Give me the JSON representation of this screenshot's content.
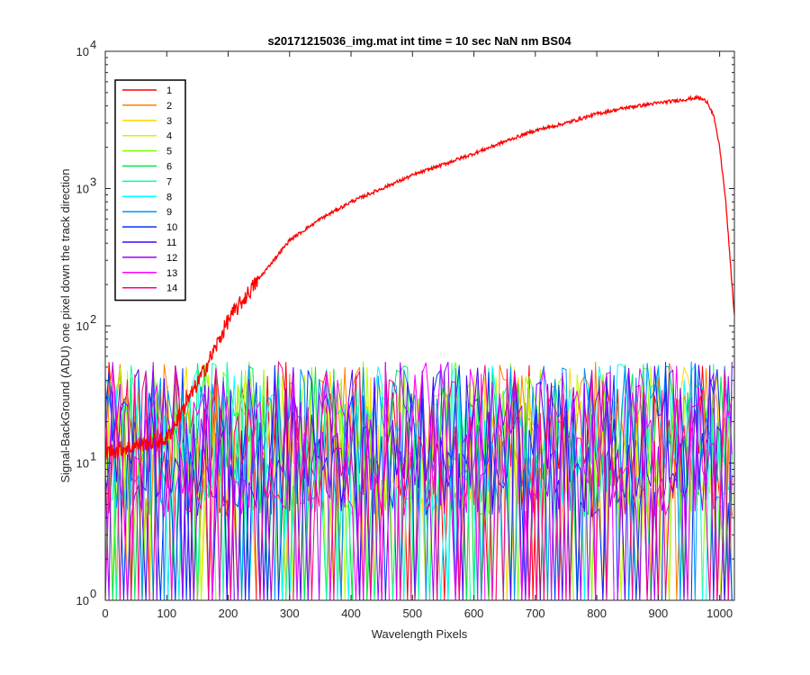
{
  "chart_data": {
    "type": "line",
    "title": "s20171215036_img.mat int time = 10 sec  NaN nm BS04",
    "xlabel": "Wavelength Pixels",
    "ylabel": "Signal-BackGround (ADU) one pixel down the track direction",
    "xlim": [
      0,
      1024
    ],
    "ylim": [
      1,
      10000
    ],
    "yscale": "log",
    "x_ticks": [
      "0",
      "100",
      "200",
      "300",
      "400",
      "500",
      "600",
      "700",
      "800",
      "900",
      "1000"
    ],
    "x_tick_values": [
      0,
      100,
      200,
      300,
      400,
      500,
      600,
      700,
      800,
      900,
      1000
    ],
    "y_ticks": [
      {
        "value": 1,
        "base": "10",
        "exp": "0"
      },
      {
        "value": 10,
        "base": "10",
        "exp": "1"
      },
      {
        "value": 100,
        "base": "10",
        "exp": "2"
      },
      {
        "value": 1000,
        "base": "10",
        "exp": "3"
      },
      {
        "value": 10000,
        "base": "10",
        "exp": "4"
      }
    ],
    "grid": false,
    "legend_position": "top-left",
    "main_series": {
      "name": "1",
      "color": "#ff0000",
      "x": [
        0,
        100,
        150,
        180,
        200,
        250,
        300,
        350,
        400,
        450,
        500,
        550,
        600,
        650,
        700,
        750,
        800,
        850,
        900,
        950,
        965,
        980,
        990,
        1000,
        1010,
        1015,
        1020,
        1024
      ],
      "y": [
        12,
        15,
        38,
        70,
        110,
        220,
        420,
        600,
        800,
        1000,
        1250,
        1500,
        1800,
        2200,
        2650,
        3000,
        3500,
        3900,
        4200,
        4500,
        4600,
        4300,
        3400,
        2000,
        800,
        400,
        200,
        120
      ]
    },
    "noise_range": [
      1,
      55
    ],
    "series": [
      {
        "name": "1",
        "color": "#ff0000"
      },
      {
        "name": "2",
        "color": "#ff7f00"
      },
      {
        "name": "3",
        "color": "#ffd700"
      },
      {
        "name": "4",
        "color": "#bfff00"
      },
      {
        "name": "5",
        "color": "#7fff00"
      },
      {
        "name": "6",
        "color": "#00e64d"
      },
      {
        "name": "7",
        "color": "#00ffa0"
      },
      {
        "name": "8",
        "color": "#00ffff"
      },
      {
        "name": "9",
        "color": "#0095ff"
      },
      {
        "name": "10",
        "color": "#0033ff"
      },
      {
        "name": "11",
        "color": "#4d00ff"
      },
      {
        "name": "12",
        "color": "#a000ff"
      },
      {
        "name": "13",
        "color": "#ff00ff"
      },
      {
        "name": "14",
        "color": "#ff0080"
      }
    ]
  }
}
